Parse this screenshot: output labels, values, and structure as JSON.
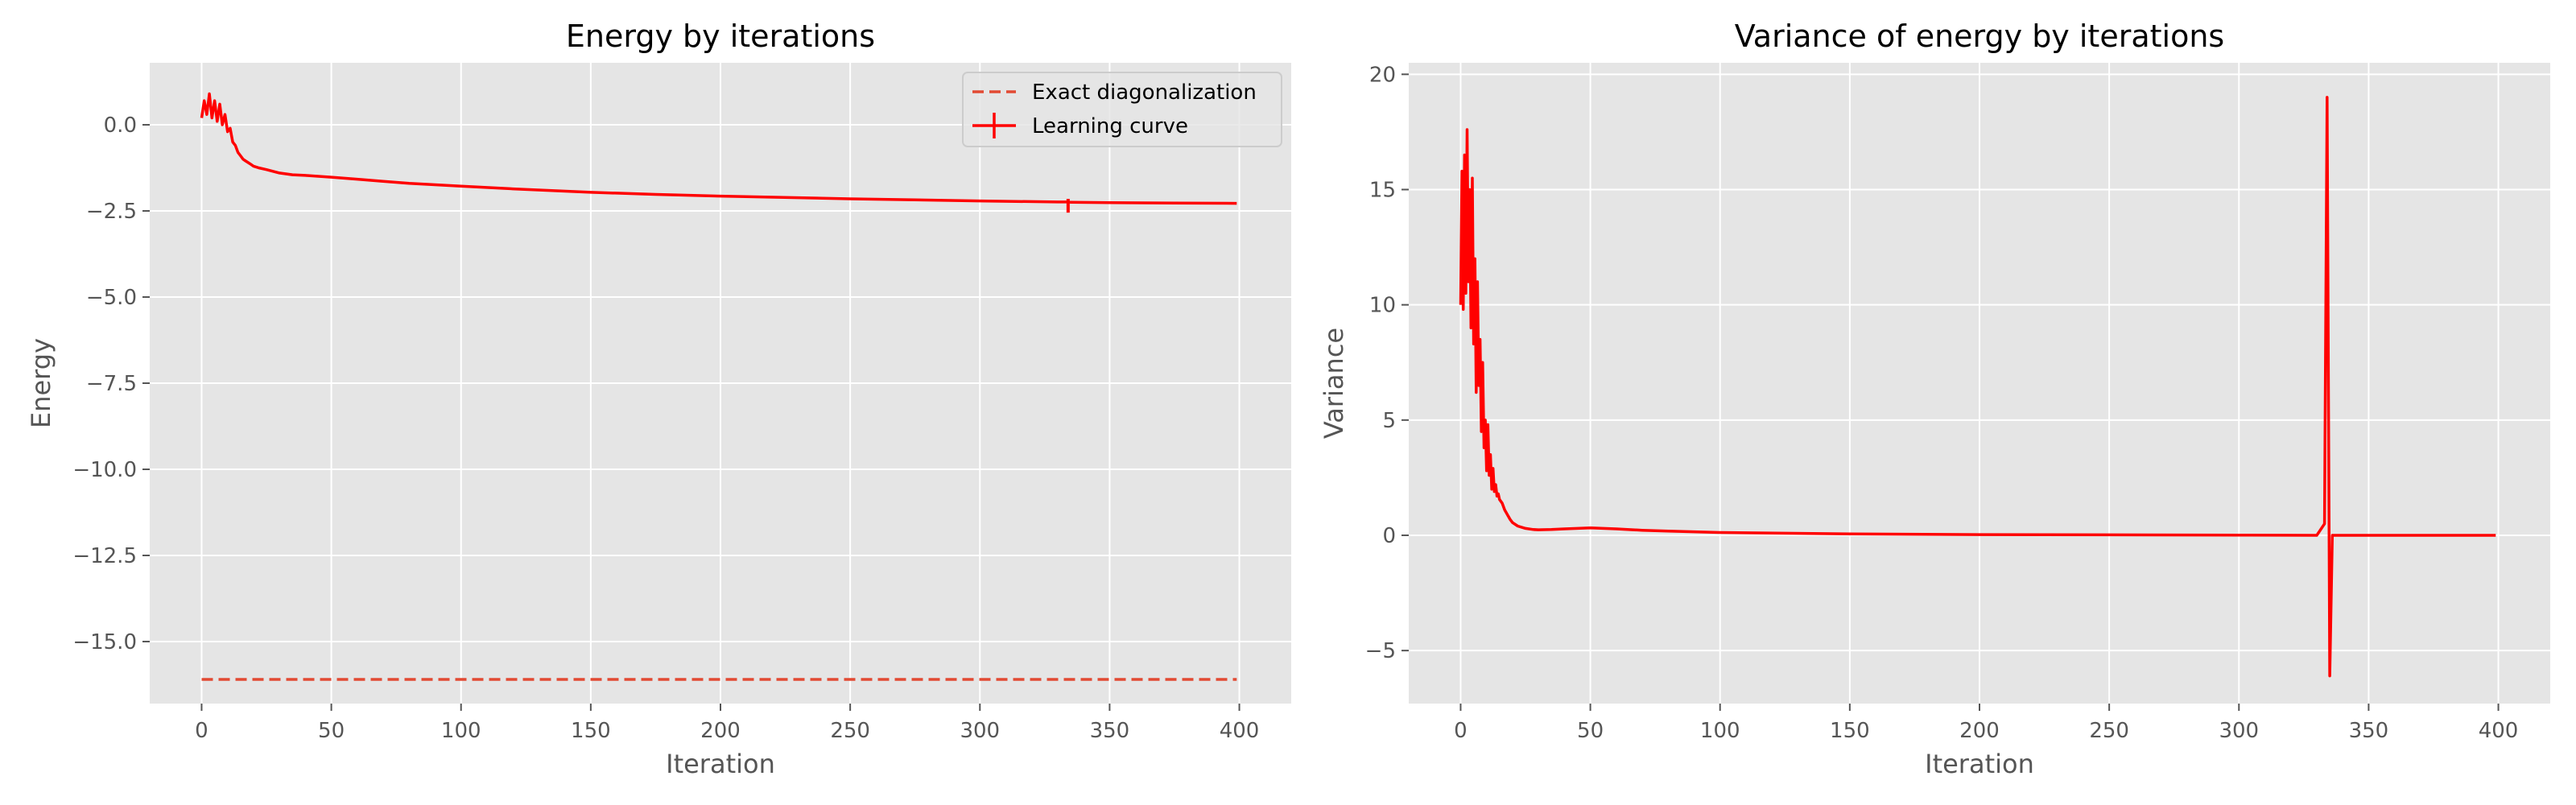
{
  "style": {
    "background": "#e5e5e5",
    "grid_color": "#ffffff",
    "line_color": "#ff0000",
    "exact_color": "#e24a33",
    "legend_face": "#e5e5e5",
    "legend_edge": "#cccccc",
    "tick_color": "#555555"
  },
  "chart_data": [
    {
      "type": "line",
      "title": "Energy by iterations",
      "xlabel": "Iteration",
      "ylabel": "Energy",
      "xlim": [
        -20,
        420
      ],
      "ylim": [
        -16.8,
        1.8
      ],
      "xticks": [
        0,
        50,
        100,
        150,
        200,
        250,
        300,
        350,
        400
      ],
      "yticks": [
        0.0,
        -2.5,
        -5.0,
        -7.5,
        -10.0,
        -12.5,
        -15.0
      ],
      "xtick_labels": [
        "0",
        "50",
        "100",
        "150",
        "200",
        "250",
        "300",
        "350",
        "400"
      ],
      "ytick_labels": [
        "0.0",
        "−2.5",
        "−5.0",
        "−7.5",
        "−10.0",
        "−12.5",
        "−15.0"
      ],
      "grid": true,
      "legend": {
        "position": "top-right",
        "entries": [
          "Exact diagonalization",
          "Learning curve"
        ]
      },
      "series": [
        {
          "name": "Exact diagonalization",
          "style": "dashed",
          "x": [
            0,
            399
          ],
          "y": [
            -16.1,
            -16.1
          ]
        },
        {
          "name": "Learning curve",
          "style": "solid",
          "x": [
            0,
            1,
            2,
            3,
            4,
            5,
            6,
            7,
            8,
            9,
            10,
            11,
            12,
            13,
            14,
            15,
            16,
            17,
            18,
            19,
            20,
            22,
            25,
            30,
            35,
            40,
            50,
            60,
            70,
            80,
            100,
            120,
            150,
            175,
            200,
            250,
            300,
            330,
            334,
            335,
            350,
            375,
            399
          ],
          "y": [
            0.2,
            0.7,
            0.3,
            0.9,
            0.2,
            0.7,
            0.1,
            0.6,
            0.0,
            0.3,
            -0.2,
            -0.1,
            -0.5,
            -0.6,
            -0.8,
            -0.9,
            -1.0,
            -1.05,
            -1.1,
            -1.15,
            -1.2,
            -1.25,
            -1.3,
            -1.4,
            -1.45,
            -1.47,
            -1.52,
            -1.58,
            -1.64,
            -1.7,
            -1.78,
            -1.86,
            -1.96,
            -2.02,
            -2.07,
            -2.15,
            -2.21,
            -2.24,
            -2.24,
            -2.25,
            -2.26,
            -2.27,
            -2.28
          ],
          "errorbar": {
            "x": 334,
            "low": -2.55,
            "high": -2.15
          }
        }
      ]
    },
    {
      "type": "line",
      "title": "Variance of energy by iterations",
      "xlabel": "Iteration",
      "ylabel": "Variance",
      "xlim": [
        -20,
        420
      ],
      "ylim": [
        -7.3,
        20.5
      ],
      "xticks": [
        0,
        50,
        100,
        150,
        200,
        250,
        300,
        350,
        400
      ],
      "yticks": [
        20,
        15,
        10,
        5,
        0,
        -5
      ],
      "xtick_labels": [
        "0",
        "50",
        "100",
        "150",
        "200",
        "250",
        "300",
        "350",
        "400"
      ],
      "ytick_labels": [
        "20",
        "15",
        "10",
        "5",
        "0",
        "−5"
      ],
      "grid": true,
      "series": [
        {
          "style": "solid",
          "x": [
            0,
            0.5,
            1,
            1.5,
            2,
            2.5,
            3,
            3.5,
            4,
            4.5,
            5,
            5.5,
            6,
            6.5,
            7,
            7.5,
            8,
            8.5,
            9,
            9.5,
            10,
            10.5,
            11,
            11.5,
            12,
            12.5,
            13,
            13.5,
            14,
            14.5,
            15,
            16,
            17,
            18,
            19,
            20,
            22,
            25,
            28,
            30,
            35,
            40,
            45,
            50,
            55,
            60,
            70,
            80,
            100,
            150,
            200,
            250,
            300,
            330,
            333,
            334,
            335,
            336,
            350,
            399
          ],
          "y": [
            10.0,
            15.8,
            9.8,
            16.5,
            10.5,
            17.6,
            11.0,
            15.0,
            9.0,
            15.5,
            8.3,
            12.0,
            6.2,
            11.0,
            6.5,
            8.5,
            4.5,
            7.5,
            3.8,
            5.0,
            2.8,
            4.8,
            2.6,
            3.5,
            2.0,
            2.9,
            1.9,
            2.2,
            1.7,
            1.8,
            1.55,
            1.4,
            1.1,
            0.9,
            0.7,
            0.55,
            0.4,
            0.3,
            0.25,
            0.24,
            0.25,
            0.28,
            0.3,
            0.32,
            0.3,
            0.28,
            0.22,
            0.18,
            0.12,
            0.06,
            0.03,
            0.02,
            0.01,
            0.0,
            0.5,
            19.0,
            -6.1,
            0.0,
            0.0,
            0.0
          ]
        }
      ]
    }
  ]
}
